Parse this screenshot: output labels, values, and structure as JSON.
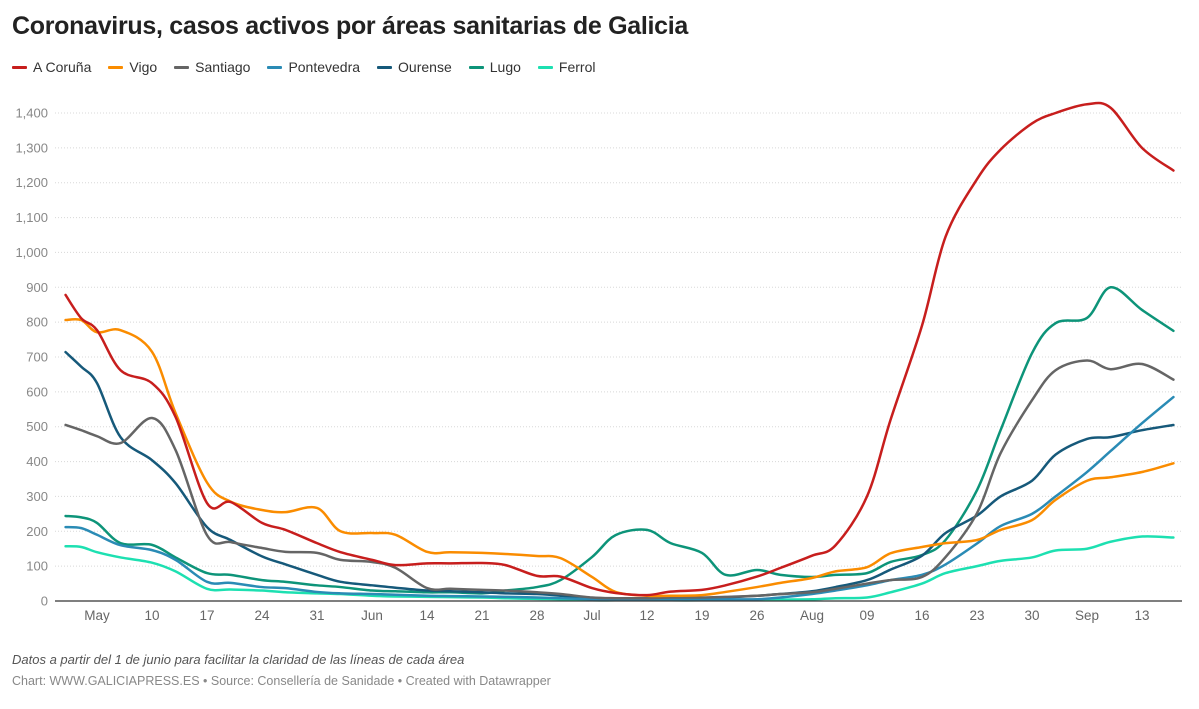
{
  "title": "Coronavirus, casos activos por áreas sanitarias de Galicia",
  "note": "Datos a partir del 1 de junio para facilitar la claridad de las líneas de cada área",
  "credits": "Chart: WWW.GALICIAPRESS.ES • Source: Consellería de Sanidade • Created with Datawrapper",
  "chart_data": {
    "type": "line",
    "title": "Coronavirus, casos activos por áreas sanitarias de Galicia",
    "xlabel": "",
    "ylabel": "",
    "ylim": [
      0,
      1400
    ],
    "grid": true,
    "legend_placement": "top-left",
    "y_ticks": [
      0,
      100,
      200,
      300,
      400,
      500,
      600,
      700,
      800,
      900,
      1000,
      1100,
      1200,
      1300,
      1400
    ],
    "y_tick_labels": [
      "0",
      "100",
      "200",
      "300",
      "400",
      "500",
      "600",
      "700",
      "800",
      "900",
      "1,000",
      "1,100",
      "1,200",
      "1,300",
      "1,400"
    ],
    "x_ticks": [
      {
        "date": "2020-05-03",
        "label": "May"
      },
      {
        "date": "2020-05-10",
        "label": "10"
      },
      {
        "date": "2020-05-17",
        "label": "17"
      },
      {
        "date": "2020-05-24",
        "label": "24"
      },
      {
        "date": "2020-05-31",
        "label": "31"
      },
      {
        "date": "2020-06-07",
        "label": "Jun"
      },
      {
        "date": "2020-06-14",
        "label": "14"
      },
      {
        "date": "2020-06-21",
        "label": "21"
      },
      {
        "date": "2020-06-28",
        "label": "28"
      },
      {
        "date": "2020-07-05",
        "label": "Jul"
      },
      {
        "date": "2020-07-12",
        "label": "12"
      },
      {
        "date": "2020-07-19",
        "label": "19"
      },
      {
        "date": "2020-07-26",
        "label": "26"
      },
      {
        "date": "2020-08-02",
        "label": "Aug"
      },
      {
        "date": "2020-08-09",
        "label": "09"
      },
      {
        "date": "2020-08-16",
        "label": "16"
      },
      {
        "date": "2020-08-23",
        "label": "23"
      },
      {
        "date": "2020-08-30",
        "label": "30"
      },
      {
        "date": "2020-09-06",
        "label": "Sep"
      },
      {
        "date": "2020-09-13",
        "label": "13"
      }
    ],
    "x": [
      "2020-04-29",
      "2020-05-01",
      "2020-05-03",
      "2020-05-06",
      "2020-05-10",
      "2020-05-13",
      "2020-05-17",
      "2020-05-20",
      "2020-05-24",
      "2020-05-27",
      "2020-05-31",
      "2020-06-03",
      "2020-06-07",
      "2020-06-10",
      "2020-06-14",
      "2020-06-17",
      "2020-06-21",
      "2020-06-24",
      "2020-06-28",
      "2020-07-01",
      "2020-07-05",
      "2020-07-08",
      "2020-07-12",
      "2020-07-15",
      "2020-07-19",
      "2020-07-22",
      "2020-07-26",
      "2020-07-29",
      "2020-08-02",
      "2020-08-05",
      "2020-08-09",
      "2020-08-12",
      "2020-08-16",
      "2020-08-19",
      "2020-08-23",
      "2020-08-26",
      "2020-08-30",
      "2020-09-02",
      "2020-09-06",
      "2020-09-09",
      "2020-09-13",
      "2020-09-17"
    ],
    "series": [
      {
        "name": "A Coruña",
        "color": "#c71e1d",
        "values": [
          878,
          811,
          777,
          662,
          625,
          528,
          281,
          284,
          224,
          204,
          166,
          140,
          118,
          103,
          108,
          108,
          109,
          103,
          72,
          70,
          37,
          23,
          17,
          27,
          32,
          45,
          70,
          95,
          130,
          160,
          300,
          520,
          790,
          1045,
          1210,
          1295,
          1370,
          1400,
          1425,
          1415,
          1300,
          1235
        ]
      },
      {
        "name": "Vigo",
        "color": "#fa8c00",
        "values": [
          806,
          806,
          771,
          777,
          715,
          539,
          340,
          285,
          261,
          255,
          267,
          200,
          195,
          190,
          141,
          140,
          138,
          135,
          129,
          123,
          69,
          26,
          15,
          15,
          17,
          26,
          40,
          52,
          66,
          85,
          97,
          137,
          155,
          166,
          175,
          204,
          232,
          290,
          345,
          355,
          370,
          395
        ]
      },
      {
        "name": "Santiago",
        "color": "#656565",
        "values": [
          505,
          490,
          473,
          453,
          525,
          433,
          189,
          169,
          152,
          141,
          138,
          118,
          112,
          95,
          37,
          35,
          32,
          30,
          25,
          20,
          10,
          8,
          8,
          10,
          10,
          12,
          15,
          20,
          25,
          35,
          50,
          60,
          69,
          126,
          252,
          424,
          576,
          662,
          690,
          665,
          680,
          635
        ]
      },
      {
        "name": "Pontevedra",
        "color": "#2a8bb5",
        "values": [
          212,
          209,
          190,
          160,
          146,
          118,
          55,
          52,
          40,
          37,
          26,
          22,
          20,
          18,
          15,
          14,
          13,
          12,
          10,
          8,
          5,
          4,
          4,
          4,
          5,
          5,
          5,
          10,
          20,
          30,
          45,
          60,
          75,
          105,
          165,
          215,
          250,
          300,
          370,
          430,
          510,
          585
        ]
      },
      {
        "name": "Ourense",
        "color": "#16597a",
        "values": [
          714,
          672,
          625,
          470,
          404,
          338,
          212,
          175,
          128,
          105,
          75,
          55,
          45,
          38,
          30,
          28,
          25,
          22,
          20,
          15,
          5,
          3,
          3,
          3,
          5,
          10,
          15,
          20,
          28,
          40,
          60,
          90,
          130,
          195,
          245,
          300,
          345,
          420,
          465,
          470,
          490,
          505
        ]
      },
      {
        "name": "Lugo",
        "color": "#0d9479",
        "values": [
          244,
          240,
          224,
          166,
          161,
          125,
          80,
          75,
          60,
          55,
          45,
          40,
          30,
          28,
          25,
          25,
          22,
          30,
          40,
          60,
          126,
          189,
          204,
          166,
          138,
          75,
          89,
          75,
          69,
          75,
          80,
          112,
          132,
          175,
          318,
          490,
          711,
          797,
          812,
          900,
          835,
          775
        ]
      },
      {
        "name": "Ferrol",
        "color": "#1de0b1",
        "values": [
          157,
          155,
          140,
          125,
          110,
          85,
          35,
          33,
          30,
          25,
          22,
          20,
          15,
          13,
          12,
          11,
          10,
          8,
          6,
          5,
          2,
          2,
          2,
          2,
          2,
          3,
          3,
          4,
          5,
          8,
          10,
          25,
          50,
          80,
          100,
          115,
          125,
          145,
          150,
          170,
          185,
          182
        ]
      }
    ]
  }
}
